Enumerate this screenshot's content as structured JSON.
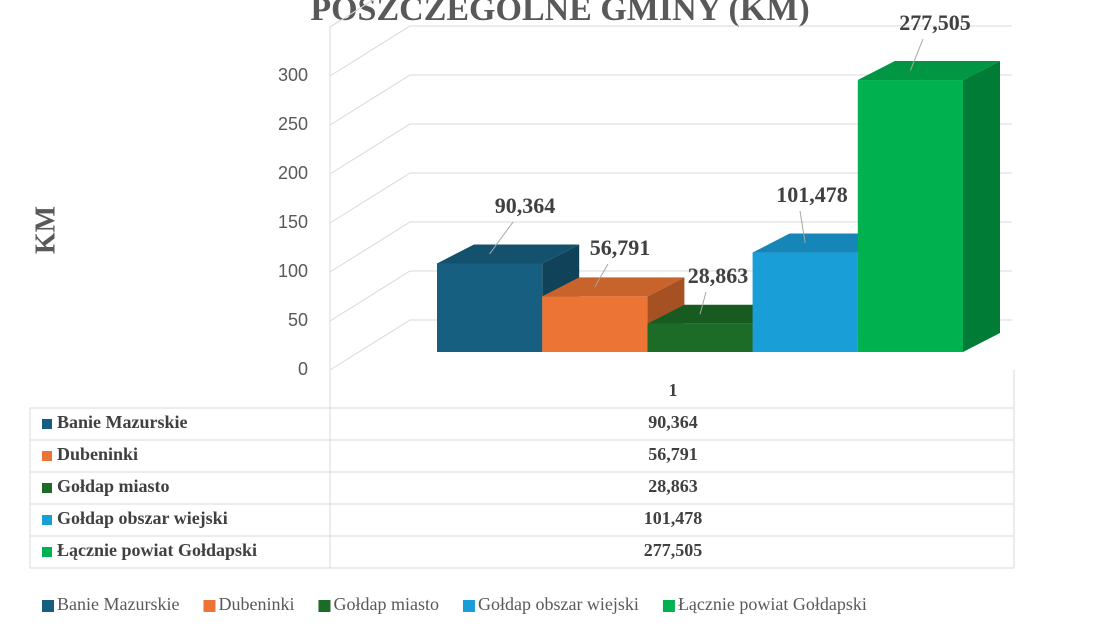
{
  "chart_data": {
    "type": "bar3d",
    "title": "POSZCZEGÓLNE GMINY (KM)",
    "ylabel": "KM",
    "categories": [
      "1"
    ],
    "series": [
      {
        "name": "Banie Mazurskie",
        "color": "#175f80",
        "values": [
          90.364
        ],
        "value_labels": [
          "90,364"
        ]
      },
      {
        "name": "Dubeninki",
        "color": "#ec7434",
        "values": [
          56.791
        ],
        "value_labels": [
          "56,791"
        ]
      },
      {
        "name": "Gołdap miasto",
        "color": "#1c6b27",
        "values": [
          28.863
        ],
        "value_labels": [
          "28,863"
        ]
      },
      {
        "name": "Gołdap obszar wiejski",
        "color": "#1a9ed8",
        "values": [
          101.478
        ],
        "value_labels": [
          "101,478"
        ]
      },
      {
        "name": "Łącznie powiat Gołdapski",
        "color": "#00b14f",
        "values": [
          277.505
        ],
        "value_labels": [
          "277,505"
        ]
      }
    ],
    "ylim": [
      0,
      350
    ],
    "yticks": [
      0,
      50,
      100,
      150,
      200,
      250,
      300
    ],
    "grid": true,
    "legend": "bottom"
  }
}
